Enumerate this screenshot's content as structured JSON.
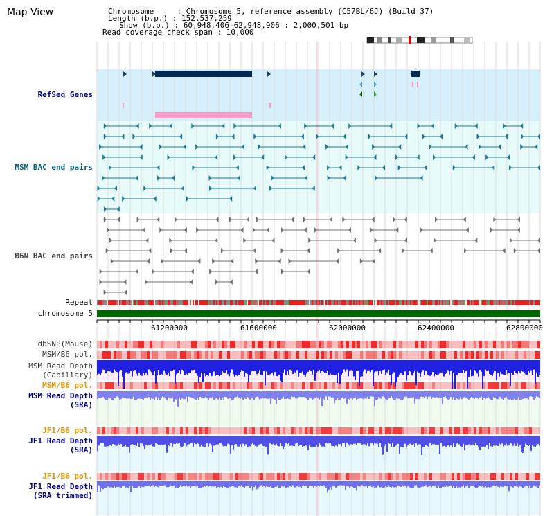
{
  "title": "Map View",
  "info": {
    "chromosome_line": "Chromosome     : Chromosome 5, reference assembly (C57BL/6J) (Build 37)",
    "length_line": "Length (b.p.) : 152,537,259",
    "show_line": "Show (b.p.) : 60,948,406-62,948,906 : 2,000,501 bp",
    "coverage_line": "Read coverage check span : 10,000"
  },
  "tracks": {
    "refseq": "RefSeq Genes",
    "msm_bac": "MSM BAC end pairs",
    "b6n_bac": "B6N BAC end pairs",
    "repeat": "Repeat",
    "chromosome": "chromosome 5",
    "dbsnp": "dbSNP(Mouse)",
    "msm_b6_pol_1": "MSM/B6 pol.",
    "msm_read_depth_cap_1": "MSM Read Depth",
    "msm_read_depth_cap_2": "(Capillary)",
    "msm_b6_pol_2": "MSM/B6 pol.",
    "msm_read_depth_sra_1": "MSM Read Depth",
    "msm_read_depth_sra_2": "(SRA)",
    "jf1_b6_pol_1": "JF1/B6 pol.",
    "jf1_read_depth_1": "JF1 Read Depth",
    "jf1_read_depth_2": "(SRA)",
    "jf1_b6_pol_2": "JF1/B6 pol.",
    "jf1_read_depth_trim_1": "JF1 Read Depth",
    "jf1_read_depth_trim_2": "(SRA trimmed)"
  },
  "ruler": {
    "ticks": [
      "61200000",
      "61600000",
      "62000000",
      "62400000",
      "62800000"
    ]
  },
  "colors": {
    "label_blue": "#000080",
    "label_orange": "#e69500",
    "label_teal": "#006080",
    "refseq_bg": "#d6f0fb",
    "bac_bg": "#e8fbfb",
    "gene_dark": "#002855",
    "gene_pink": "#f79cc7",
    "chrom_green": "#006400",
    "depth_blue": "#2020e0",
    "depth_light": "#8080f0"
  }
}
